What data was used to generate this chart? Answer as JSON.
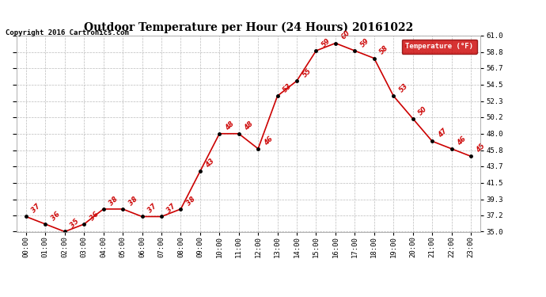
{
  "title": "Outdoor Temperature per Hour (24 Hours) 20161022",
  "copyright": "Copyright 2016 Cartronics.com",
  "legend_label": "Temperature (°F)",
  "hours": [
    "00:00",
    "01:00",
    "02:00",
    "03:00",
    "04:00",
    "05:00",
    "06:00",
    "07:00",
    "08:00",
    "09:00",
    "10:00",
    "11:00",
    "12:00",
    "13:00",
    "14:00",
    "15:00",
    "16:00",
    "17:00",
    "18:00",
    "19:00",
    "20:00",
    "21:00",
    "22:00",
    "23:00"
  ],
  "temps": [
    37,
    36,
    35,
    36,
    38,
    38,
    37,
    37,
    38,
    43,
    48,
    48,
    46,
    53,
    55,
    59,
    60,
    59,
    58,
    53,
    50,
    47,
    46,
    45
  ],
  "line_color": "#cc0000",
  "marker_color": "#000000",
  "label_color": "#cc0000",
  "legend_bg": "#cc0000",
  "legend_text_color": "#ffffff",
  "ylim_min": 35.0,
  "ylim_max": 61.0,
  "yticks": [
    35.0,
    37.2,
    39.3,
    41.5,
    43.7,
    45.8,
    48.0,
    50.2,
    52.3,
    54.5,
    56.7,
    58.8,
    61.0
  ],
  "bg_color": "#ffffff",
  "grid_color": "#bbbbbb",
  "title_fontsize": 10,
  "label_fontsize": 6.0,
  "tick_fontsize": 6.5,
  "copyright_fontsize": 6.5
}
